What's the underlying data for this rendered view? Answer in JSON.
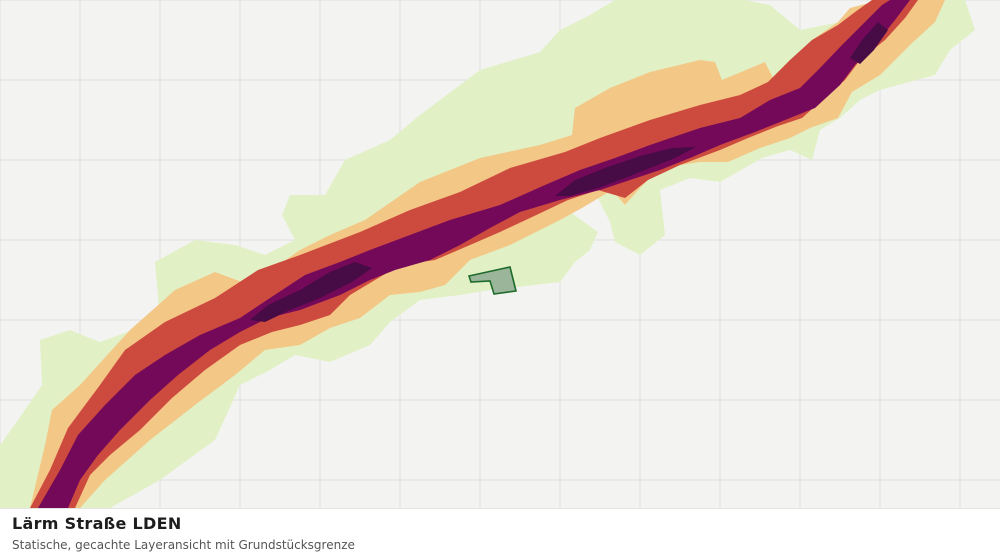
{
  "map": {
    "layer_title": "Lärm Straße LDEN",
    "layer_subtitle": "Statische, gecachte Layeransicht mit Grundstücksgrenze",
    "colors": {
      "background": "#f3f4f2",
      "grid": "#dfe1de",
      "zone_low": "#e2f0c6",
      "zone_mid_low": "#f3c786",
      "zone_mid_high": "#cd4a3f",
      "zone_high": "#74095a",
      "zone_very_high": "#470b45",
      "parcel_fill": "#9bb59b",
      "parcel_stroke": "#1f6b2c"
    }
  }
}
